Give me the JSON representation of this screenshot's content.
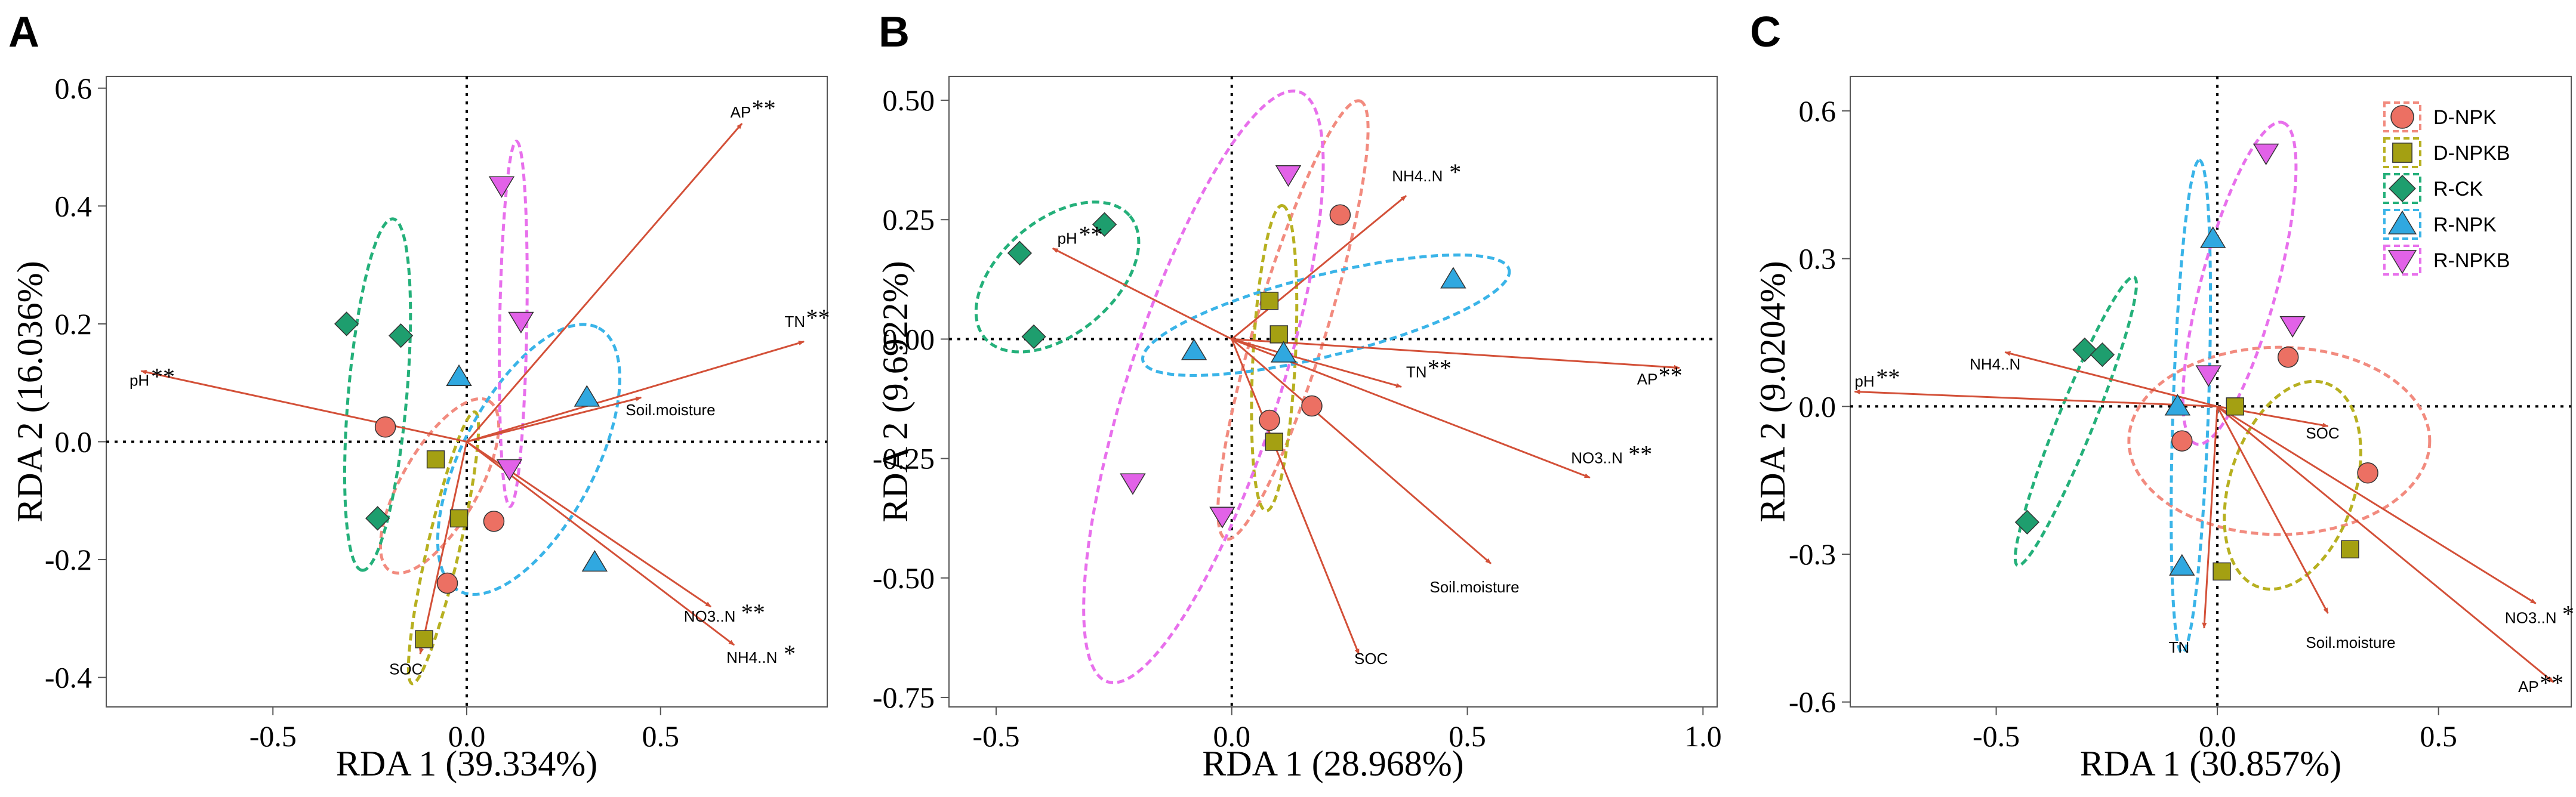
{
  "chart_data": [
    {
      "panel": "A",
      "type": "scatter",
      "xlabel": "RDA 1 (39.334%)",
      "ylabel": "RDA 2 (16.036%)",
      "xlim": [
        -0.93,
        0.93
      ],
      "ylim": [
        -0.45,
        0.62
      ],
      "xticks": [
        -0.5,
        0.0,
        0.5
      ],
      "yticks": [
        -0.4,
        -0.2,
        0.0,
        0.2,
        0.4,
        0.6
      ],
      "xtick_labels": [
        "-0.5",
        "0.0",
        "0.5"
      ],
      "ytick_labels": [
        "-0.4",
        "-0.2",
        "0.0",
        "0.2",
        "0.4",
        "0.6"
      ],
      "series": [
        {
          "name": "D-NPK",
          "points": [
            [
              -0.21,
              0.025
            ],
            [
              0.07,
              -0.135
            ],
            [
              -0.05,
              -0.24
            ]
          ],
          "ellipse": {
            "cx": -0.07,
            "cy": -0.075,
            "rx": 0.18,
            "ry": 0.085,
            "angle": -60
          }
        },
        {
          "name": "D-NPKB",
          "points": [
            [
              -0.08,
              -0.03
            ],
            [
              -0.02,
              -0.13
            ],
            [
              -0.11,
              -0.335
            ]
          ],
          "ellipse": {
            "cx": -0.06,
            "cy": -0.18,
            "rx": 0.24,
            "ry": 0.04,
            "angle": -77
          }
        },
        {
          "name": "R-CK",
          "points": [
            [
              -0.31,
              0.2
            ],
            [
              -0.17,
              0.18
            ],
            [
              -0.23,
              -0.13
            ]
          ],
          "ellipse": {
            "cx": -0.23,
            "cy": 0.08,
            "rx": 0.3,
            "ry": 0.075,
            "angle": 95
          }
        },
        {
          "name": "R-NPK",
          "points": [
            [
              -0.02,
              0.11
            ],
            [
              0.31,
              0.075
            ],
            [
              0.33,
              -0.205
            ]
          ],
          "ellipse": {
            "cx": 0.16,
            "cy": -0.03,
            "rx": 0.27,
            "ry": 0.15,
            "angle": -62
          }
        },
        {
          "name": "R-NPKB",
          "points": [
            [
              0.09,
              0.435
            ],
            [
              0.14,
              0.205
            ],
            [
              0.11,
              -0.045
            ]
          ],
          "ellipse": {
            "cx": 0.12,
            "cy": 0.2,
            "rx": 0.31,
            "ry": 0.035,
            "angle": -89
          }
        }
      ],
      "arrows": [
        {
          "label": "AP",
          "sig": "**",
          "x": 0.71,
          "y": 0.54,
          "lx": 0.68,
          "ly": 0.55
        },
        {
          "label": "TN",
          "sig": "**",
          "x": 0.87,
          "y": 0.17,
          "lx": 0.82,
          "ly": 0.195
        },
        {
          "label": "pH",
          "sig": "**",
          "x": -0.84,
          "y": 0.12,
          "lx": -0.87,
          "ly": 0.095
        },
        {
          "label": "Soil.moisture",
          "sig": "",
          "x": 0.45,
          "y": 0.075,
          "lx": 0.41,
          "ly": 0.045
        },
        {
          "label": "NO3..N",
          "sig": "**",
          "x": 0.63,
          "y": -0.28,
          "lx": 0.56,
          "ly": -0.305
        },
        {
          "label": "NH4..N",
          "sig": "*",
          "x": 0.69,
          "y": -0.345,
          "lx": 0.67,
          "ly": -0.375
        },
        {
          "label": "SOC",
          "sig": "",
          "x": -0.12,
          "y": -0.36,
          "lx": -0.2,
          "ly": -0.395
        }
      ]
    },
    {
      "panel": "B",
      "type": "scatter",
      "xlabel": "RDA 1 (28.968%)",
      "ylabel": "RDA 2 (9.6922%)",
      "xlim": [
        -0.6,
        1.03
      ],
      "ylim": [
        -0.77,
        0.55
      ],
      "xticks": [
        -0.5,
        0.0,
        0.5,
        1.0
      ],
      "yticks": [
        -0.75,
        -0.5,
        -0.25,
        0.0,
        0.25,
        0.5
      ],
      "xtick_labels": [
        "-0.5",
        "0.0",
        "0.5",
        "1.0"
      ],
      "ytick_labels": [
        "-0.75",
        "-0.50",
        "-0.25",
        "0.00",
        "0.25",
        "0.50"
      ],
      "series": [
        {
          "name": "D-NPK",
          "points": [
            [
              0.23,
              0.26
            ],
            [
              0.17,
              -0.14
            ],
            [
              0.08,
              -0.17
            ]
          ],
          "ellipse": {
            "cx": 0.13,
            "cy": 0.04,
            "rx": 0.48,
            "ry": 0.075,
            "angle": -73
          }
        },
        {
          "name": "D-NPKB",
          "points": [
            [
              0.08,
              0.08
            ],
            [
              0.1,
              0.01
            ],
            [
              0.09,
              -0.215
            ]
          ],
          "ellipse": {
            "cx": 0.09,
            "cy": -0.04,
            "rx": 0.32,
            "ry": 0.045,
            "angle": -87
          }
        },
        {
          "name": "R-CK",
          "points": [
            [
              -0.45,
              0.18
            ],
            [
              -0.27,
              0.24
            ],
            [
              -0.42,
              0.005
            ]
          ],
          "ellipse": {
            "cx": -0.37,
            "cy": 0.13,
            "rx": 0.2,
            "ry": 0.12,
            "angle": -40
          }
        },
        {
          "name": "R-NPK",
          "points": [
            [
              -0.08,
              -0.025
            ],
            [
              0.11,
              -0.03
            ],
            [
              0.47,
              0.125
            ]
          ],
          "ellipse": {
            "cx": 0.2,
            "cy": 0.05,
            "rx": 0.4,
            "ry": 0.085,
            "angle": -14
          }
        },
        {
          "name": "R-NPKB",
          "points": [
            [
              0.12,
              0.345
            ],
            [
              -0.21,
              -0.3
            ],
            [
              -0.02,
              -0.37
            ]
          ],
          "ellipse": {
            "cx": -0.06,
            "cy": -0.1,
            "rx": 0.65,
            "ry": 0.16,
            "angle": -72
          }
        }
      ],
      "arrows": [
        {
          "label": "NH4..N",
          "sig": "*",
          "x": 0.37,
          "y": 0.3,
          "lx": 0.34,
          "ly": 0.33
        },
        {
          "label": "pH",
          "sig": "**",
          "x": -0.38,
          "y": 0.19,
          "lx": -0.37,
          "ly": 0.2
        },
        {
          "label": "TN",
          "sig": "**",
          "x": 0.36,
          "y": -0.1,
          "lx": 0.37,
          "ly": -0.08
        },
        {
          "label": "AP",
          "sig": "**",
          "x": 0.95,
          "y": -0.06,
          "lx": 0.86,
          "ly": -0.095
        },
        {
          "label": "NO3..N",
          "sig": "**",
          "x": 0.76,
          "y": -0.29,
          "lx": 0.72,
          "ly": -0.26
        },
        {
          "label": "Soil.moisture",
          "sig": "",
          "x": 0.55,
          "y": -0.47,
          "lx": 0.42,
          "ly": -0.53
        },
        {
          "label": "SOC",
          "sig": "",
          "x": 0.27,
          "y": -0.66,
          "lx": 0.26,
          "ly": -0.68
        }
      ]
    },
    {
      "panel": "C",
      "type": "scatter",
      "xlabel": "RDA 1 (30.857%)",
      "ylabel": "RDA 2 (9.0204%)",
      "xlim": [
        -0.83,
        0.8
      ],
      "ylim": [
        -0.61,
        0.67
      ],
      "xticks": [
        -0.5,
        0.0,
        0.5
      ],
      "yticks": [
        -0.6,
        -0.3,
        0.0,
        0.3,
        0.6
      ],
      "xtick_labels": [
        "-0.5",
        "0.0",
        "0.5"
      ],
      "ytick_labels": [
        "-0.6",
        "-0.3",
        "0.0",
        "0.3",
        "0.6"
      ],
      "series": [
        {
          "name": "D-NPK",
          "points": [
            [
              0.16,
              0.1
            ],
            [
              -0.08,
              -0.07
            ],
            [
              0.34,
              -0.135
            ]
          ],
          "ellipse": {
            "cx": 0.14,
            "cy": -0.07,
            "rx": 0.34,
            "ry": 0.19,
            "angle": 0
          }
        },
        {
          "name": "D-NPKB",
          "points": [
            [
              0.04,
              0.0
            ],
            [
              0.3,
              -0.29
            ],
            [
              0.01,
              -0.335
            ]
          ],
          "ellipse": {
            "cx": 0.17,
            "cy": -0.16,
            "rx": 0.22,
            "ry": 0.14,
            "angle": -72
          }
        },
        {
          "name": "R-CK",
          "points": [
            [
              -0.3,
              0.115
            ],
            [
              -0.26,
              0.105
            ],
            [
              -0.43,
              -0.235
            ]
          ],
          "ellipse": {
            "cx": -0.32,
            "cy": -0.03,
            "rx": 0.32,
            "ry": 0.04,
            "angle": -68
          }
        },
        {
          "name": "R-NPK",
          "points": [
            [
              -0.01,
              0.34
            ],
            [
              -0.09,
              0.0
            ],
            [
              -0.08,
              -0.325
            ]
          ],
          "ellipse": {
            "cx": -0.06,
            "cy": 0.0,
            "rx": 0.5,
            "ry": 0.04,
            "angle": -88
          }
        },
        {
          "name": "R-NPKB",
          "points": [
            [
              0.11,
              0.515
            ],
            [
              0.17,
              0.165
            ],
            [
              -0.02,
              0.065
            ]
          ],
          "ellipse": {
            "cx": 0.05,
            "cy": 0.25,
            "rx": 0.34,
            "ry": 0.085,
            "angle": -75
          }
        }
      ],
      "arrows": [
        {
          "label": "NH4..N",
          "sig": "",
          "x": -0.48,
          "y": 0.11,
          "lx": -0.56,
          "ly": 0.075
        },
        {
          "label": "pH",
          "sig": "**",
          "x": -0.82,
          "y": 0.03,
          "lx": -0.82,
          "ly": 0.04
        },
        {
          "label": "SOC",
          "sig": "",
          "x": 0.25,
          "y": -0.04,
          "lx": 0.2,
          "ly": -0.065
        },
        {
          "label": "TN",
          "sig": "",
          "x": -0.03,
          "y": -0.45,
          "lx": -0.11,
          "ly": -0.5
        },
        {
          "label": "Soil.moisture",
          "sig": "",
          "x": 0.25,
          "y": -0.42,
          "lx": 0.2,
          "ly": -0.49
        },
        {
          "label": "NO3..N",
          "sig": "*",
          "x": 0.72,
          "y": -0.4,
          "lx": 0.65,
          "ly": -0.44
        },
        {
          "label": "AP",
          "sig": "**",
          "x": 0.76,
          "y": -0.56,
          "lx": 0.68,
          "ly": -0.58
        }
      ]
    }
  ],
  "legend": {
    "entries": [
      "D-NPK",
      "D-NPKB",
      "R-CK",
      "R-NPK",
      "R-NPKB"
    ],
    "colors": {
      "D-NPK": "#EC7063",
      "D-NPKB": "#A4A012",
      "R-CK": "#1E9E6E",
      "R-NPK": "#30A8E0",
      "R-NPKB": "#E262E8"
    },
    "shapes": {
      "D-NPK": "circle",
      "D-NPKB": "square",
      "R-CK": "diamond",
      "R-NPK": "triangle-up",
      "R-NPKB": "triangle-down"
    }
  },
  "arrow_color": "#D35038",
  "ellipse_colors": {
    "D-NPK": "#F28B7F",
    "D-NPKB": "#B7B020",
    "R-CK": "#24B07A",
    "R-NPK": "#3AB4E8",
    "R-NPKB": "#E870EC"
  }
}
